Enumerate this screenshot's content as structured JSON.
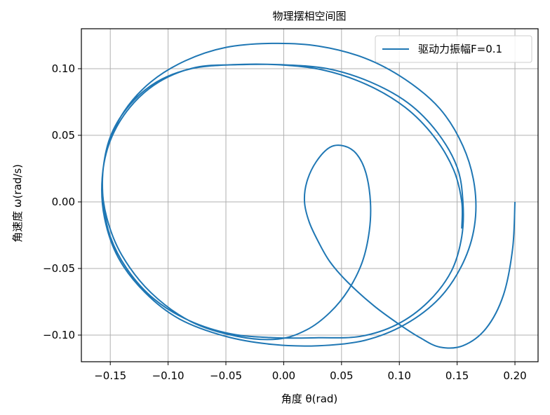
{
  "chart_data": {
    "type": "line",
    "title": "物理摆相空间图",
    "xlabel": "角度 θ(rad)",
    "ylabel": "角速度 ω(rad/s)",
    "xlim": [
      -0.175,
      0.22
    ],
    "ylim": [
      -0.12,
      0.13
    ],
    "xticks": [
      -0.15,
      -0.1,
      -0.05,
      0.0,
      0.05,
      0.1,
      0.15,
      0.2
    ],
    "yticks": [
      -0.1,
      -0.05,
      0.0,
      0.05,
      0.1
    ],
    "xtick_labels": [
      "−0.15",
      "−0.10",
      "−0.05",
      "0.00",
      "0.05",
      "0.10",
      "0.15",
      "0.20"
    ],
    "ytick_labels": [
      "−0.10",
      "−0.05",
      "0.00",
      "0.05",
      "0.10"
    ],
    "grid": true,
    "legend_position": "top-right",
    "series": [
      {
        "name": "驱动力振幅F=0.1",
        "color": "#1f77b4",
        "x": [
          0.2,
          0.198,
          0.19,
          0.175,
          0.155,
          0.135,
          0.118,
          0.1,
          0.078,
          0.055,
          0.04,
          0.03,
          0.022,
          0.018,
          0.02,
          0.028,
          0.04,
          0.052,
          0.063,
          0.071,
          0.075,
          0.074,
          0.068,
          0.056,
          0.04,
          0.02,
          -0.005,
          -0.04,
          -0.08,
          -0.115,
          -0.14,
          -0.153,
          -0.157,
          -0.152,
          -0.138,
          -0.115,
          -0.085,
          -0.05,
          -0.01,
          0.03,
          0.07,
          0.105,
          0.135,
          0.155,
          0.165,
          0.165,
          0.155,
          0.135,
          0.105,
          0.07,
          0.03,
          -0.01,
          -0.05,
          -0.09,
          -0.12,
          -0.143,
          -0.155,
          -0.157,
          -0.15,
          -0.133,
          -0.108,
          -0.076,
          -0.04,
          -0.002,
          0.038,
          0.075,
          0.108,
          0.133,
          0.15,
          0.155,
          0.154,
          0.145,
          0.125,
          0.098,
          0.066,
          0.03,
          -0.008,
          -0.046,
          -0.082,
          -0.112,
          -0.135,
          -0.15,
          -0.156,
          -0.156,
          -0.149,
          -0.133,
          -0.11,
          -0.08,
          -0.044,
          -0.006,
          0.034,
          0.072,
          0.105,
          0.13,
          0.147,
          0.154,
          0.154
        ],
        "y": [
          0.0,
          -0.035,
          -0.07,
          -0.095,
          -0.108,
          -0.109,
          -0.102,
          -0.092,
          -0.078,
          -0.06,
          -0.045,
          -0.03,
          -0.015,
          0.0,
          0.015,
          0.03,
          0.041,
          0.042,
          0.036,
          0.022,
          0.0,
          -0.022,
          -0.045,
          -0.066,
          -0.083,
          -0.096,
          -0.103,
          -0.101,
          -0.09,
          -0.068,
          -0.04,
          -0.012,
          0.015,
          0.042,
          0.068,
          0.09,
          0.106,
          0.116,
          0.119,
          0.117,
          0.108,
          0.092,
          0.07,
          0.042,
          0.012,
          -0.018,
          -0.046,
          -0.072,
          -0.092,
          -0.104,
          -0.108,
          -0.107,
          -0.101,
          -0.088,
          -0.068,
          -0.042,
          -0.012,
          0.018,
          0.046,
          0.071,
          0.09,
          0.101,
          0.103,
          0.103,
          0.1,
          0.09,
          0.074,
          0.052,
          0.026,
          0.0,
          -0.026,
          -0.052,
          -0.075,
          -0.092,
          -0.101,
          -0.102,
          -0.102,
          -0.099,
          -0.089,
          -0.073,
          -0.051,
          -0.026,
          0.0,
          0.026,
          0.051,
          0.073,
          0.09,
          0.1,
          0.103,
          0.103,
          0.099,
          0.088,
          0.071,
          0.049,
          0.024,
          0.0,
          -0.02
        ]
      }
    ]
  }
}
